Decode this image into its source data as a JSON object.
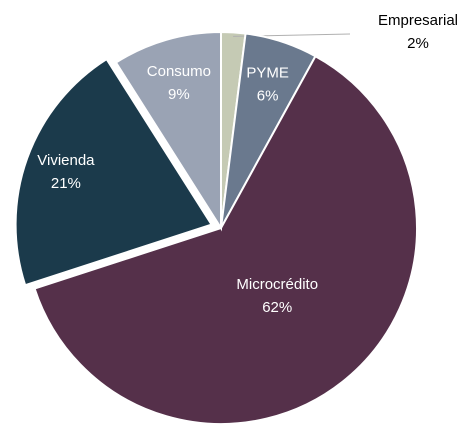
{
  "chart_data": {
    "type": "pie",
    "categories": [
      "Empresarial",
      "PYME",
      "Microcrédito",
      "Vivienda",
      "Consumo"
    ],
    "values": [
      2,
      6,
      62,
      21,
      9
    ],
    "value_labels": [
      "2%",
      "6%",
      "62%",
      "21%",
      "9%"
    ],
    "colors": [
      "#c5cab4",
      "#6a798e",
      "#55304a",
      "#1b3a4b",
      "#9aa3b4"
    ],
    "exploded": [
      "Vivienda"
    ]
  }
}
